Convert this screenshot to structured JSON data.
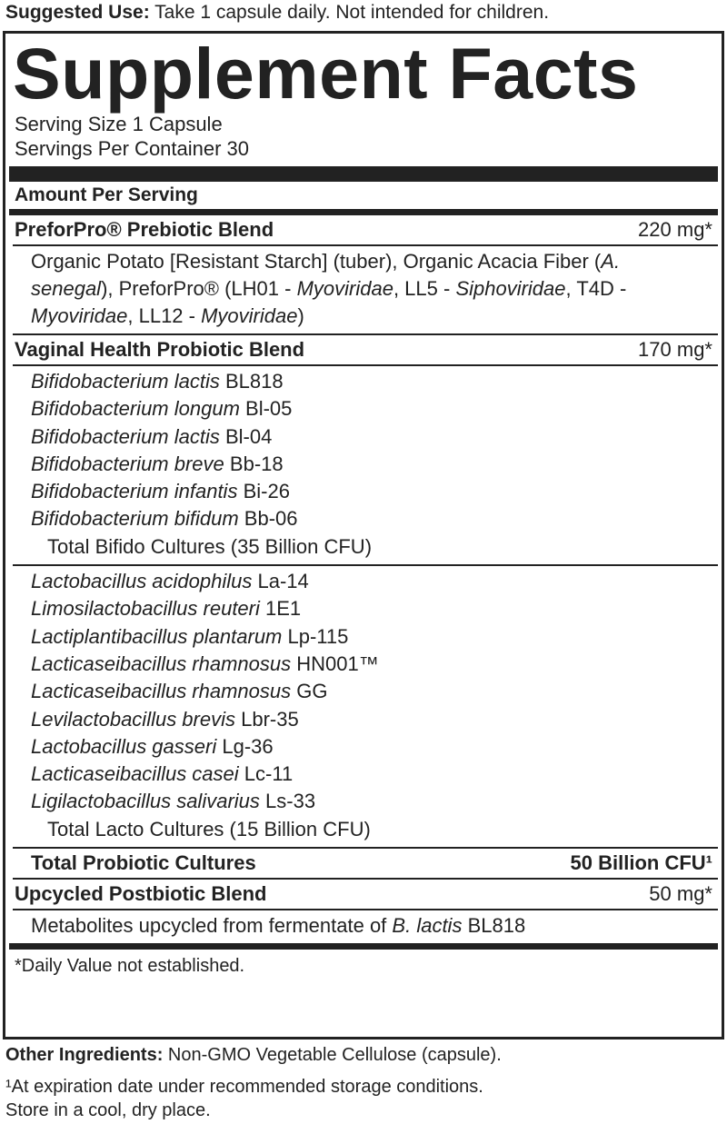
{
  "suggested_use": {
    "label": "Suggested Use:",
    "text": "Take 1 capsule daily. Not intended for children."
  },
  "panel": {
    "title": "Supplement Facts",
    "serving_size": "Serving Size 1 Capsule",
    "servings_per_container": "Servings Per Container 30",
    "amount_header": "Amount Per Serving",
    "prebiotic": {
      "name": "PreforPro® Prebiotic Blend",
      "amount": "220 mg*",
      "ingredients": [
        {
          "text": "Organic Potato [Resistant Starch] (tuber), Organic Acacia Fiber ("
        },
        {
          "text": "A. senegal",
          "italic": true
        },
        {
          "text": "), PreforPro® (LH01 - "
        },
        {
          "text": "Myoviridae",
          "italic": true
        },
        {
          "text": ", LL5 - "
        },
        {
          "text": "Siphoviridae",
          "italic": true
        },
        {
          "text": ", T4D - "
        },
        {
          "text": "Myoviridae",
          "italic": true
        },
        {
          "text": ", LL12 - "
        },
        {
          "text": "Myoviridae",
          "italic": true
        },
        {
          "text": ")"
        }
      ]
    },
    "probiotic": {
      "name": "Vaginal Health Probiotic Blend",
      "amount": "170 mg*",
      "bifido": [
        {
          "species": "Bifidobacterium lactis",
          "strain": "BL818"
        },
        {
          "species": "Bifidobacterium longum",
          "strain": "Bl-05"
        },
        {
          "species": "Bifidobacterium lactis",
          "strain": "Bl-04"
        },
        {
          "species": "Bifidobacterium breve",
          "strain": "Bb-18"
        },
        {
          "species": "Bifidobacterium infantis",
          "strain": "Bi-26"
        },
        {
          "species": "Bifidobacterium bifidum",
          "strain": "Bb-06"
        }
      ],
      "bifido_total": "Total Bifido Cultures (35 Billion CFU)",
      "lacto": [
        {
          "species": "Lactobacillus acidophilus",
          "strain": "La-14"
        },
        {
          "species": "Limosilactobacillus reuteri",
          "strain": "1E1"
        },
        {
          "species": "Lactiplantibacillus plantarum",
          "strain": "Lp-115"
        },
        {
          "species": "Lacticaseibacillus rhamnosus",
          "strain": "HN001™"
        },
        {
          "species": "Lacticaseibacillus rhamnosus",
          "strain": "GG"
        },
        {
          "species": "Levilactobacillus brevis",
          "strain": "Lbr-35"
        },
        {
          "species": "Lactobacillus gasseri",
          "strain": "Lg-36"
        },
        {
          "species": "Lacticaseibacillus casei",
          "strain": "Lc-11"
        },
        {
          "species": "Ligilactobacillus salivarius",
          "strain": "Ls-33"
        }
      ],
      "lacto_total": "Total Lacto Cultures (15 Billion CFU)",
      "total_label": "Total Probiotic Cultures",
      "total_amount": "50 Billion CFU¹"
    },
    "postbiotic": {
      "name": "Upcycled Postbiotic Blend",
      "amount": "50 mg*",
      "ingredients": [
        {
          "text": "Metabolites upcycled from fermentate of "
        },
        {
          "text": "B. lactis",
          "italic": true
        },
        {
          "text": " BL818"
        }
      ]
    },
    "daily_value_note": "*Daily Value not established."
  },
  "other_ingredients": {
    "label": "Other Ingredients:",
    "text": "Non-GMO Vegetable Cellulose (capsule)."
  },
  "footnotes": [
    "¹At expiration date under recommended storage conditions.",
    "Store in a cool, dry place."
  ]
}
